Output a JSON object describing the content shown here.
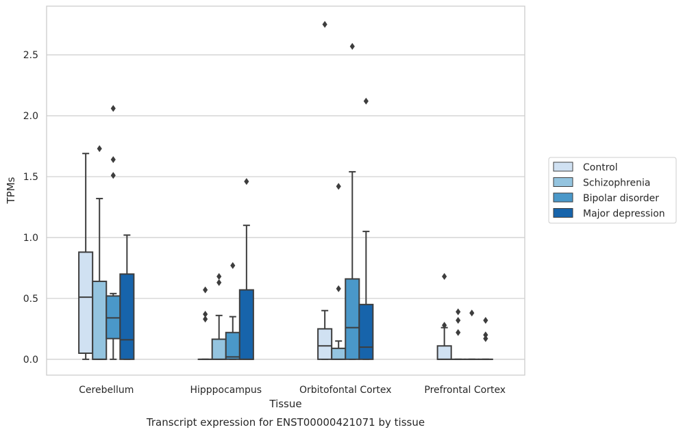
{
  "chart_data": {
    "type": "boxplot",
    "title": "",
    "caption": "Transcript expression for ENST00000421071 by tissue",
    "xlabel": "Tissue",
    "ylabel": "TPMs",
    "ylim": [
      -0.13,
      2.9
    ],
    "yticks": [
      0.0,
      0.5,
      1.0,
      1.5,
      2.0,
      2.5
    ],
    "ytick_labels": [
      "0.0",
      "0.5",
      "1.0",
      "1.5",
      "2.0",
      "2.5"
    ],
    "grid": "horizontal",
    "legend_position": "right",
    "categories": [
      "Cerebellum",
      "Hipppocampus",
      "Orbitofontal Cortex",
      "Prefrontal Cortex"
    ],
    "series": [
      {
        "name": "Control",
        "color": "#d0e1f2",
        "boxes": [
          {
            "whislo": 0.0,
            "q1": 0.05,
            "med": 0.51,
            "q3": 0.88,
            "whishi": 1.69,
            "fliers": []
          },
          {
            "whislo": 0.0,
            "q1": 0.0,
            "med": 0.0,
            "q3": 0.0,
            "whishi": 0.0,
            "fliers": [
              0.57,
              0.37,
              0.33
            ]
          },
          {
            "whislo": 0.0,
            "q1": 0.0,
            "med": 0.11,
            "q3": 0.25,
            "whishi": 0.4,
            "fliers": [
              2.75
            ]
          },
          {
            "whislo": 0.0,
            "q1": 0.0,
            "med": 0.0,
            "q3": 0.11,
            "whishi": 0.26,
            "fliers": [
              0.68,
              0.28
            ]
          }
        ]
      },
      {
        "name": "Schizophrenia",
        "color": "#94c4df",
        "boxes": [
          {
            "whislo": 0.0,
            "q1": 0.0,
            "med": 0.0,
            "q3": 0.64,
            "whishi": 1.32,
            "fliers": [
              1.73
            ]
          },
          {
            "whislo": 0.0,
            "q1": 0.0,
            "med": 0.0,
            "q3": 0.165,
            "whishi": 0.36,
            "fliers": [
              0.68,
              0.63
            ]
          },
          {
            "whislo": 0.0,
            "q1": 0.0,
            "med": 0.0,
            "q3": 0.09,
            "whishi": 0.15,
            "fliers": [
              1.42,
              0.58
            ]
          },
          {
            "whislo": 0.0,
            "q1": 0.0,
            "med": 0.0,
            "q3": 0.0,
            "whishi": 0.0,
            "fliers": [
              0.39,
              0.32,
              0.22
            ]
          }
        ]
      },
      {
        "name": "Bipolar disorder",
        "color": "#4a98c9",
        "boxes": [
          {
            "whislo": 0.0,
            "q1": 0.17,
            "med": 0.34,
            "q3": 0.52,
            "whishi": 0.54,
            "fliers": [
              2.06,
              1.64,
              1.51
            ]
          },
          {
            "whislo": 0.0,
            "q1": 0.0,
            "med": 0.02,
            "q3": 0.22,
            "whishi": 0.35,
            "fliers": [
              0.77
            ]
          },
          {
            "whislo": 0.0,
            "q1": 0.0,
            "med": 0.26,
            "q3": 0.66,
            "whishi": 1.54,
            "fliers": [
              2.57
            ]
          },
          {
            "whislo": 0.0,
            "q1": 0.0,
            "med": 0.0,
            "q3": 0.0,
            "whishi": 0.0,
            "fliers": [
              0.38
            ]
          }
        ]
      },
      {
        "name": "Major depression",
        "color": "#1764ab",
        "boxes": [
          {
            "whislo": 0.0,
            "q1": 0.0,
            "med": 0.16,
            "q3": 0.7,
            "whishi": 1.02,
            "fliers": []
          },
          {
            "whislo": 0.0,
            "q1": 0.0,
            "med": 0.0,
            "q3": 0.57,
            "whishi": 1.1,
            "fliers": [
              1.46
            ]
          },
          {
            "whislo": 0.0,
            "q1": 0.0,
            "med": 0.1,
            "q3": 0.45,
            "whishi": 1.05,
            "fliers": [
              2.12
            ]
          },
          {
            "whislo": 0.0,
            "q1": 0.0,
            "med": 0.0,
            "q3": 0.0,
            "whishi": 0.0,
            "fliers": [
              0.32,
              0.2,
              0.17
            ]
          }
        ]
      }
    ],
    "colors": {
      "edge": "#3d3d3d",
      "grid": "#cccccc",
      "frame": "#cccccc",
      "text": "#262626"
    }
  }
}
